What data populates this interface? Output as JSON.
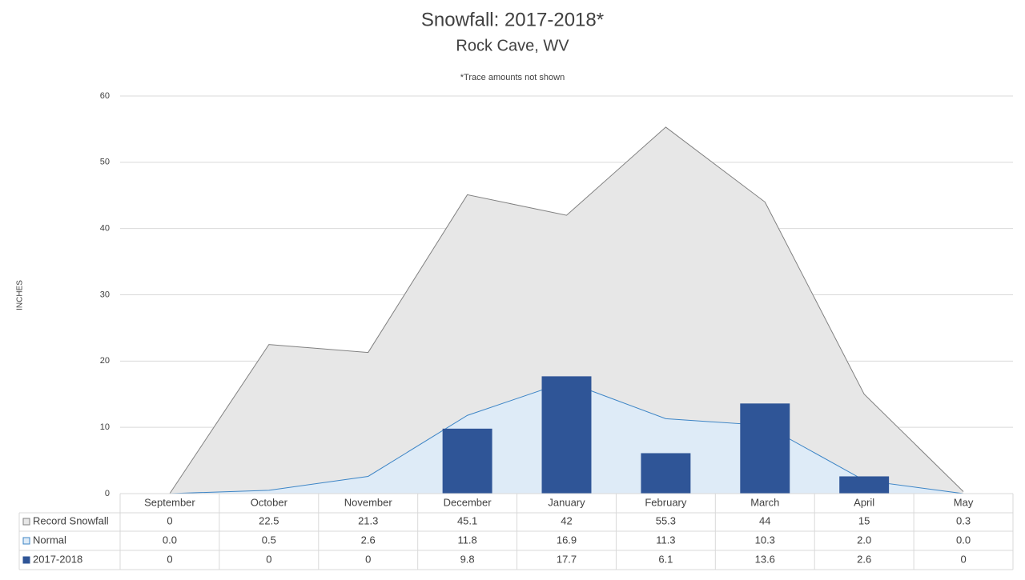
{
  "chart_data": {
    "type": "combo",
    "title": "Snowfall: 2017-2018*",
    "subtitle": "Rock Cave, WV",
    "annotation": "*Trace amounts not shown",
    "y_label": "INCHES",
    "categories": [
      "September",
      "October",
      "November",
      "December",
      "January",
      "February",
      "March",
      "April",
      "May"
    ],
    "series": [
      {
        "name": "Record Snowfall",
        "type": "area",
        "color": "#e7e7e7",
        "line_color": "#808080",
        "values": [
          0,
          22.5,
          21.3,
          45.1,
          42,
          55.3,
          44,
          15,
          0.3
        ]
      },
      {
        "name": "Normal",
        "type": "area",
        "color": "#deebf7",
        "line_color": "#3d85c6",
        "values": [
          0.0,
          0.5,
          2.6,
          11.8,
          16.9,
          11.3,
          10.3,
          2.0,
          0.0
        ],
        "value_labels": [
          "0.0",
          "0.5",
          "2.6",
          "11.8",
          "16.9",
          "11.3",
          "10.3",
          "2.0",
          "0.0"
        ]
      },
      {
        "name": "2017-2018",
        "type": "bar",
        "color": "#2f5597",
        "values": [
          0,
          0,
          0,
          9.8,
          17.7,
          6.1,
          13.6,
          2.6,
          0
        ]
      }
    ],
    "ylim": [
      0,
      60
    ],
    "yticks": [
      0,
      10,
      20,
      30,
      40,
      50,
      60
    ],
    "grid": true,
    "legend": "table"
  }
}
